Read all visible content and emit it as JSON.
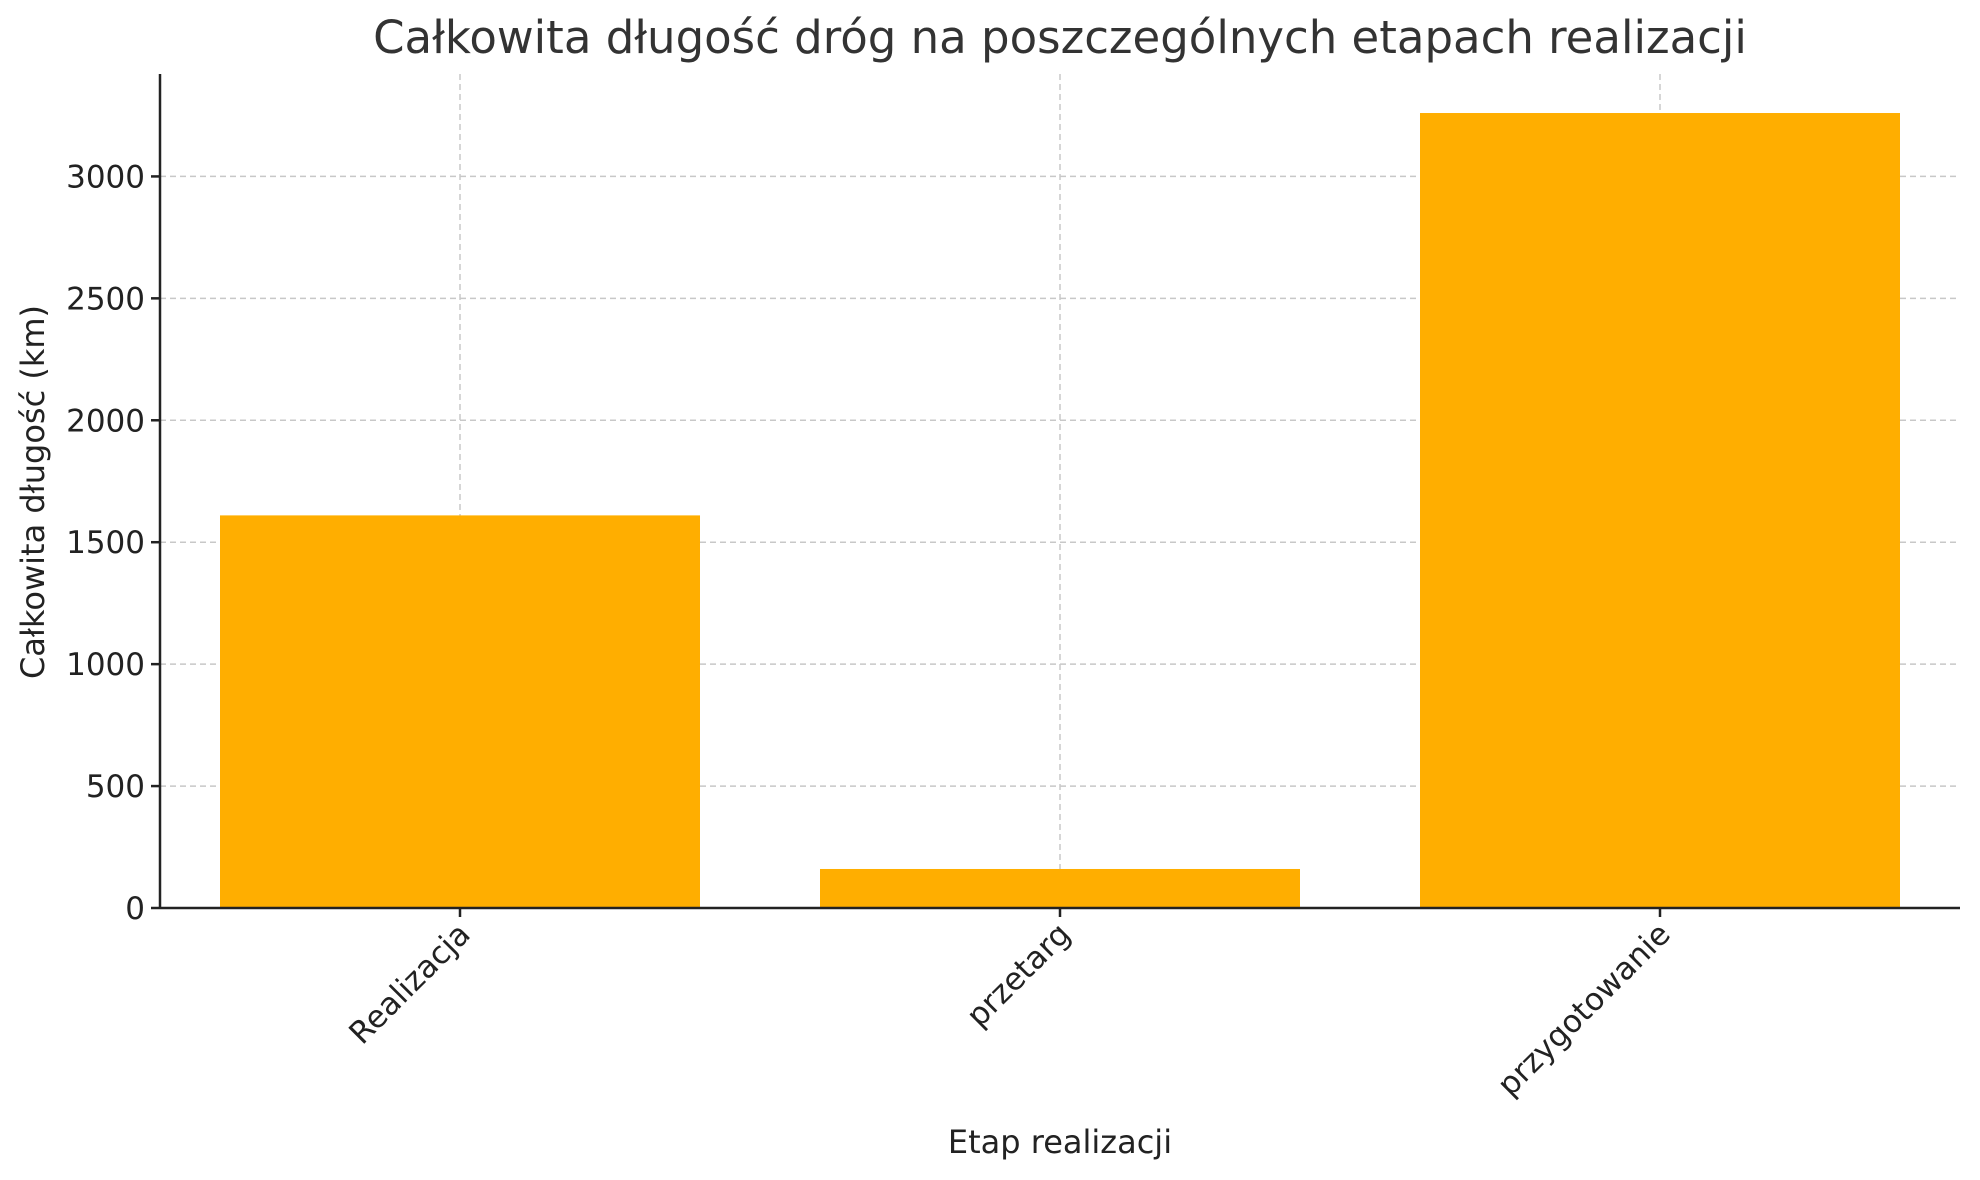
{
  "chart_data": {
    "type": "bar",
    "title": "Całkowita długość dróg na poszczególnych etapach realizacji",
    "xlabel": "Etap realizacji",
    "ylabel": "Całkowita długość (km)",
    "categories": [
      "Realizacja",
      "przetarg",
      "przygotowanie"
    ],
    "values": [
      1610,
      160,
      3260
    ],
    "ylim": [
      0,
      3420
    ],
    "yticks": [
      0,
      500,
      1000,
      1500,
      2000,
      2500,
      3000
    ],
    "grid": true,
    "bar_color": "#FFAE00",
    "axis_color": "#222222",
    "grid_color": "#C8C8C8"
  }
}
